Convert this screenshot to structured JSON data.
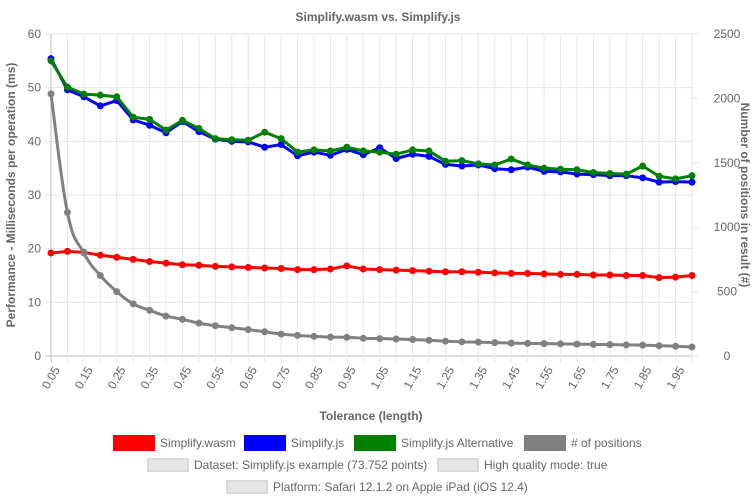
{
  "chart_data": {
    "type": "line",
    "title": "Simplify.wasm vs. Simplify.js",
    "xlabel": "Tolerance (length)",
    "ylabel": "Performance - Milliseconds per operation (ms)",
    "y2label": "Number of positions in result (#)",
    "ylim": [
      0,
      60
    ],
    "y2lim": [
      0,
      2500
    ],
    "yticks": [
      "0",
      "10",
      "20",
      "30",
      "40",
      "50",
      "60"
    ],
    "y2ticks": [
      "0",
      "500",
      "1000",
      "1500",
      "2000",
      "2500"
    ],
    "grid": true,
    "legend_position": "bottom",
    "x": [
      0.05,
      0.1,
      0.15,
      0.2,
      0.25,
      0.3,
      0.35,
      0.4,
      0.45,
      0.5,
      0.55,
      0.6,
      0.65,
      0.7,
      0.75,
      0.8,
      0.85,
      0.9,
      0.95,
      1.0,
      1.05,
      1.1,
      1.15,
      1.2,
      1.25,
      1.3,
      1.35,
      1.4,
      1.45,
      1.5,
      1.55,
      1.6,
      1.65,
      1.7,
      1.75,
      1.8,
      1.85,
      1.9,
      1.95,
      2.0
    ],
    "x_tick_labels": [
      "0.05",
      "0.15",
      "0.25",
      "0.35",
      "0.45",
      "0.55",
      "0.65",
      "0.75",
      "0.85",
      "0.95",
      "1.05",
      "1.15",
      "1.25",
      "1.35",
      "1.45",
      "1.55",
      "1.65",
      "1.75",
      "1.85",
      "1.95"
    ],
    "series": [
      {
        "name": "Simplify.wasm",
        "color": "#ff0000",
        "axis": "left",
        "values": [
          19.2,
          19.5,
          19.3,
          18.8,
          18.4,
          18.0,
          17.6,
          17.3,
          17.0,
          16.9,
          16.7,
          16.6,
          16.5,
          16.4,
          16.3,
          16.1,
          16.1,
          16.2,
          16.8,
          16.2,
          16.1,
          16.0,
          15.9,
          15.8,
          15.7,
          15.7,
          15.6,
          15.5,
          15.4,
          15.4,
          15.3,
          15.2,
          15.2,
          15.1,
          15.1,
          15.0,
          15.0,
          14.6,
          14.7,
          15.0
        ]
      },
      {
        "name": "Simplify.js",
        "color": "#0000ff",
        "axis": "left",
        "values": [
          55.4,
          49.6,
          48.3,
          46.6,
          47.6,
          44.0,
          43.0,
          41.6,
          43.7,
          41.8,
          40.4,
          40.0,
          39.9,
          38.9,
          39.4,
          37.3,
          38.0,
          37.4,
          38.5,
          37.5,
          38.8,
          36.8,
          37.6,
          37.2,
          35.7,
          35.4,
          35.6,
          34.9,
          34.7,
          35.2,
          34.4,
          34.3,
          33.9,
          33.8,
          33.6,
          33.6,
          33.2,
          32.4,
          32.5,
          32.4
        ]
      },
      {
        "name": "Simplify.js Alternative",
        "color": "#008000",
        "axis": "left",
        "values": [
          55.0,
          50.1,
          48.8,
          48.6,
          48.3,
          44.5,
          44.1,
          42.1,
          43.9,
          42.4,
          40.5,
          40.3,
          40.2,
          41.7,
          40.5,
          38.0,
          38.4,
          38.2,
          38.9,
          38.2,
          38.0,
          37.6,
          38.4,
          38.2,
          36.3,
          36.4,
          35.8,
          35.6,
          36.7,
          35.6,
          35.0,
          34.8,
          34.7,
          34.2,
          34.0,
          33.9,
          35.4,
          33.5,
          33.0,
          33.6
        ]
      },
      {
        "name": "# of positions",
        "color": "#808080",
        "axis": "right",
        "values": [
          2035,
          1115,
          800,
          625,
          500,
          405,
          355,
          310,
          285,
          255,
          235,
          220,
          205,
          188,
          170,
          160,
          152,
          147,
          145,
          138,
          135,
          132,
          128,
          122,
          115,
          110,
          108,
          104,
          100,
          98,
          96,
          94,
          92,
          90,
          88,
          86,
          84,
          80,
          76,
          70
        ]
      }
    ]
  },
  "legend_extra": [
    "Dataset: Simplify.js example (73.752 points)",
    "High quality mode: true",
    "Platform: Safari 12.1.2 on Apple iPad (iOS 12.4)"
  ]
}
